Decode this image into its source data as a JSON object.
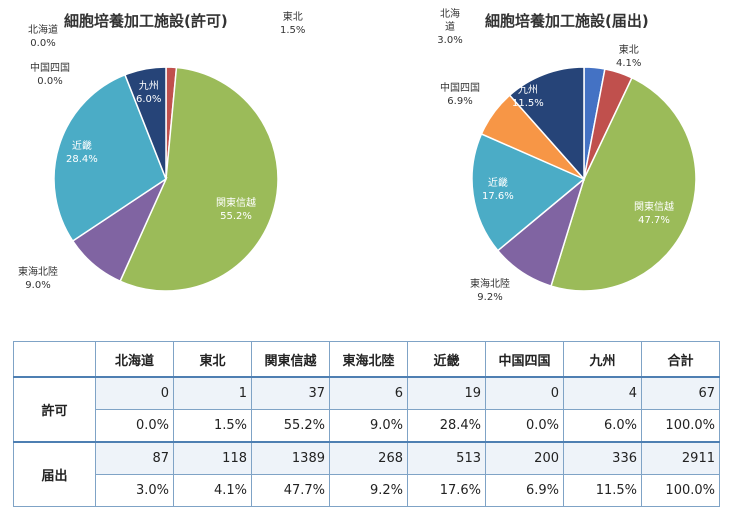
{
  "chart_data": [
    {
      "type": "pie",
      "title": "細胞培養加工施設(許可)",
      "categories": [
        "北海道",
        "東北",
        "関東信越",
        "東海北陸",
        "近畿",
        "中国四国",
        "九州"
      ],
      "values": [
        0,
        1,
        37,
        6,
        19,
        0,
        4
      ],
      "percent_labels": [
        "0.0%",
        "1.5%",
        "55.2%",
        "9.0%",
        "28.4%",
        "0.0%",
        "6.0%"
      ],
      "colors": [
        "#4472c4",
        "#c0504d",
        "#9bbb59",
        "#8064a2",
        "#4bacc6",
        "#f79646",
        "#264478"
      ]
    },
    {
      "type": "pie",
      "title": "細胞培養加工施設(届出)",
      "categories": [
        "北海道",
        "東北",
        "関東信越",
        "東海北陸",
        "近畿",
        "中国四国",
        "九州"
      ],
      "values": [
        87,
        118,
        1389,
        268,
        513,
        200,
        336
      ],
      "percent_labels": [
        "3.0%",
        "4.1%",
        "47.7%",
        "9.2%",
        "17.6%",
        "6.9%",
        "11.5%"
      ],
      "colors": [
        "#4472c4",
        "#c0504d",
        "#9bbb59",
        "#8064a2",
        "#4bacc6",
        "#f79646",
        "#264478"
      ]
    }
  ],
  "table": {
    "headers": [
      "北海道",
      "東北",
      "関東信越",
      "東海北陸",
      "近畿",
      "中国四国",
      "九州",
      "合計"
    ],
    "rows": [
      {
        "label": "許可",
        "counts": [
          "0",
          "1",
          "37",
          "6",
          "19",
          "0",
          "4",
          "67"
        ],
        "percents": [
          "0.0%",
          "1.5%",
          "55.2%",
          "9.0%",
          "28.4%",
          "0.0%",
          "6.0%",
          "100.0%"
        ]
      },
      {
        "label": "届出",
        "counts": [
          "87",
          "118",
          "1389",
          "268",
          "513",
          "200",
          "336",
          "2911"
        ],
        "percents": [
          "3.0%",
          "4.1%",
          "47.7%",
          "9.2%",
          "17.6%",
          "6.9%",
          "11.5%",
          "100.0%"
        ]
      }
    ]
  }
}
